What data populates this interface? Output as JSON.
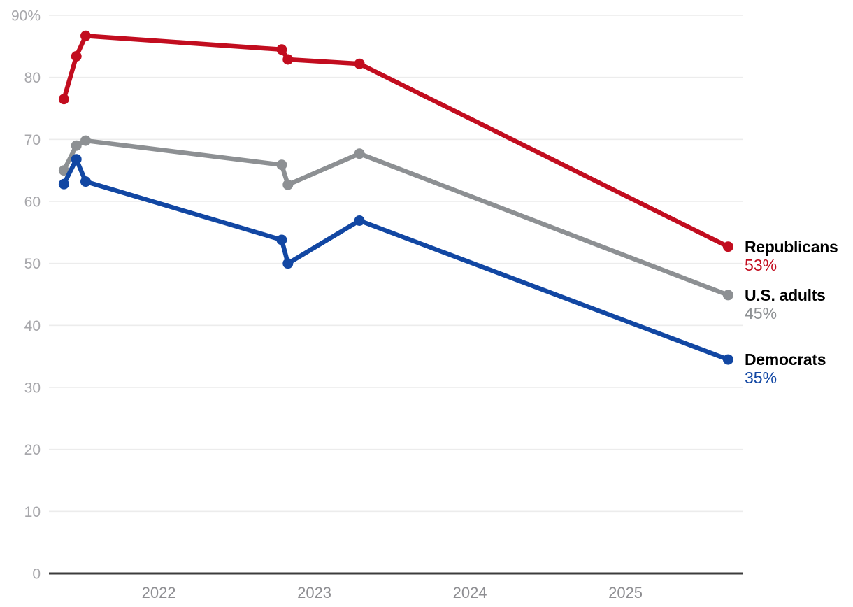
{
  "chart_data": {
    "type": "line",
    "title": "",
    "x_range": [
      2021.294,
      2025.757
    ],
    "y_range": [
      0,
      90
    ],
    "grid": "horizontal gridlines every 10 percentage points",
    "legend_position": "right of plot, inline end labels",
    "x_ticks": [
      {
        "value": 2022,
        "label": "2022"
      },
      {
        "value": 2023,
        "label": "2023"
      },
      {
        "value": 2024,
        "label": "2024"
      },
      {
        "value": 2025,
        "label": "2025"
      }
    ],
    "y_ticks": [
      {
        "value": 90,
        "label": "90%"
      },
      {
        "value": 80,
        "label": "80"
      },
      {
        "value": 70,
        "label": "70"
      },
      {
        "value": 60,
        "label": "60"
      },
      {
        "value": 50,
        "label": "50"
      },
      {
        "value": 40,
        "label": "40"
      },
      {
        "value": 30,
        "label": "30"
      },
      {
        "value": 20,
        "label": "20"
      },
      {
        "value": 10,
        "label": "10"
      },
      {
        "value": 0,
        "label": "0"
      }
    ],
    "x": [
      2021.39,
      2021.47,
      2021.53,
      2022.79,
      2022.83,
      2023.29,
      2025.66
    ],
    "series": [
      {
        "name": "Republicans",
        "end_label": "53%",
        "color": "#c20d1f",
        "values": [
          76.5,
          83.4,
          86.7,
          84.5,
          82.9,
          82.2,
          52.7
        ]
      },
      {
        "name": "U.S. adults",
        "end_label": "45%",
        "color": "#8d9093",
        "values": [
          65.0,
          69.0,
          69.8,
          65.9,
          62.7,
          67.7,
          44.9
        ]
      },
      {
        "name": "Democrats",
        "end_label": "35%",
        "color": "#1247a3",
        "values": [
          62.8,
          66.8,
          63.2,
          53.8,
          50.0,
          56.9,
          34.5
        ]
      }
    ],
    "colors": {
      "grid": "#ececec",
      "axis_line": "#3c3c3c",
      "y_tick_label": "#a7a7ab",
      "x_tick_label": "#8e8e92",
      "series_name_text": "#000000",
      "background": "#ffffff"
    }
  }
}
